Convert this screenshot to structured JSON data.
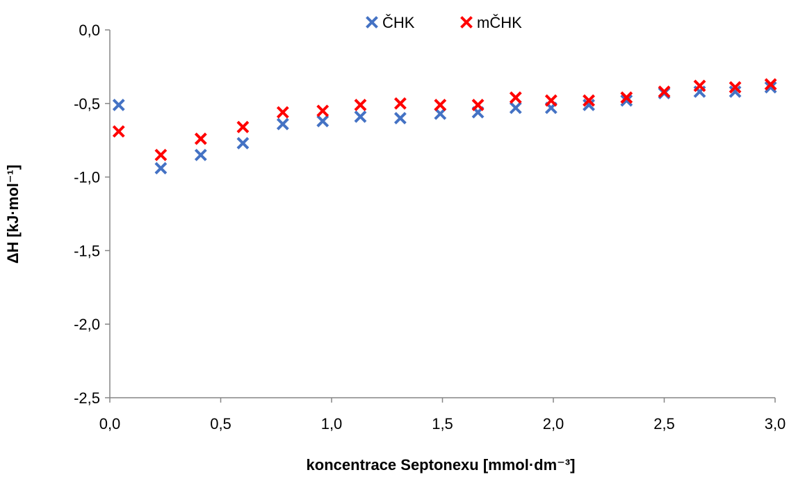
{
  "chart_data": {
    "type": "scatter",
    "xlabel": "koncentrace Septonexu [mmol·dm⁻³]",
    "ylabel": "ΔH [kJ·mol⁻¹]",
    "xlim": [
      0,
      3
    ],
    "ylim": [
      -2.5,
      0
    ],
    "x_ticks": [
      "0,0",
      "0,5",
      "1,0",
      "1,5",
      "2,0",
      "2,5",
      "3,0"
    ],
    "y_ticks": [
      "0,0",
      "-0,5",
      "-1,0",
      "-1,5",
      "-2,0",
      "-2,5"
    ],
    "grid": false,
    "legend_position": "top-center",
    "marker": "x",
    "series": [
      {
        "name": "ČHK",
        "color": "#4472C4",
        "x": [
          0.04,
          0.23,
          0.41,
          0.6,
          0.78,
          0.96,
          1.13,
          1.31,
          1.49,
          1.66,
          1.83,
          1.99,
          2.16,
          2.33,
          2.5,
          2.66,
          2.82,
          2.98
        ],
        "y": [
          -0.51,
          -0.94,
          -0.85,
          -0.77,
          -0.64,
          -0.62,
          -0.59,
          -0.6,
          -0.57,
          -0.56,
          -0.53,
          -0.53,
          -0.51,
          -0.48,
          -0.43,
          -0.42,
          -0.42,
          -0.39
        ]
      },
      {
        "name": "mČHK",
        "color": "#FF0000",
        "x": [
          0.04,
          0.23,
          0.41,
          0.6,
          0.78,
          0.96,
          1.13,
          1.31,
          1.49,
          1.66,
          1.83,
          1.99,
          2.16,
          2.33,
          2.5,
          2.66,
          2.82,
          2.98
        ],
        "y": [
          -0.69,
          -0.85,
          -0.74,
          -0.66,
          -0.56,
          -0.55,
          -0.51,
          -0.5,
          -0.51,
          -0.51,
          -0.46,
          -0.48,
          -0.48,
          -0.46,
          -0.42,
          -0.38,
          -0.39,
          -0.37
        ]
      }
    ]
  }
}
